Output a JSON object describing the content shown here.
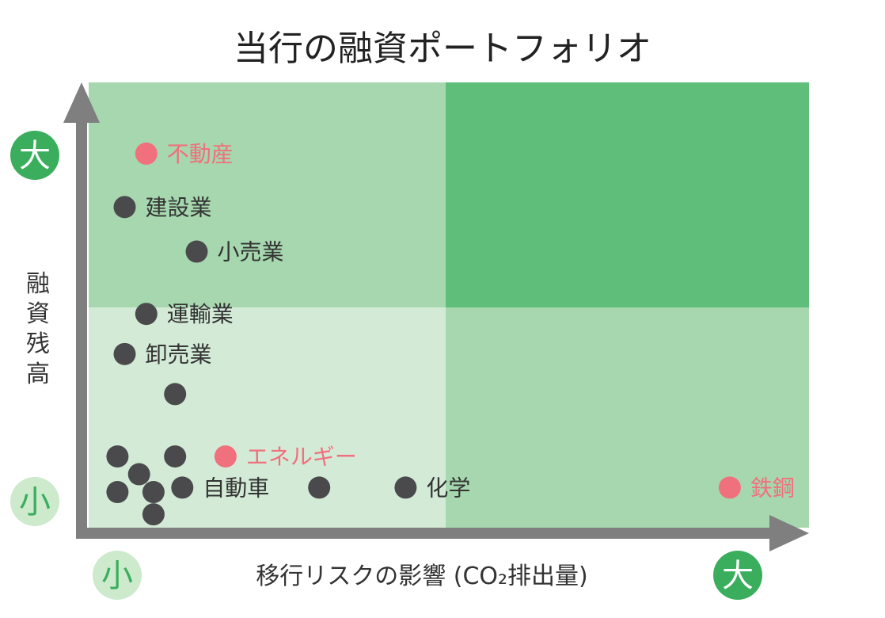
{
  "chart_data": {
    "type": "scatter",
    "title": "当行の融資ポートフォリオ",
    "xlabel": "移行リスクの影響 (CO₂排出量)",
    "ylabel": "融資残高",
    "x_scale": {
      "low_label": "小",
      "high_label": "大"
    },
    "y_scale": {
      "low_label": "小",
      "high_label": "大"
    },
    "xlim": [
      0,
      10
    ],
    "ylim": [
      0,
      10
    ],
    "grid": false,
    "quadrant_colors": {
      "low_low": "#d3ebd6",
      "low_high": "#a6d7ae",
      "high_low": "#a6d7ae",
      "high_high": "#5fbf7a"
    },
    "colors": {
      "highlight": "#f0707d",
      "normal": "#4a4a4c",
      "badge_large_bg": "#3aae5d",
      "badge_large_text": "#ffffff",
      "badge_small_bg": "#cdeacd",
      "badge_small_text": "#3aae5d",
      "axis": "#7f7f80"
    },
    "points": [
      {
        "label": "不動産",
        "x": 0.8,
        "y": 8.4,
        "highlight": true
      },
      {
        "label": "建設業",
        "x": 0.5,
        "y": 7.2,
        "highlight": false
      },
      {
        "label": "小売業",
        "x": 1.5,
        "y": 6.2,
        "highlight": false
      },
      {
        "label": "運輸業",
        "x": 0.8,
        "y": 4.8,
        "highlight": false
      },
      {
        "label": "卸売業",
        "x": 0.5,
        "y": 3.9,
        "highlight": false
      },
      {
        "label": "",
        "x": 1.2,
        "y": 3.0,
        "highlight": false
      },
      {
        "label": "",
        "x": 0.4,
        "y": 1.6,
        "highlight": false
      },
      {
        "label": "",
        "x": 1.2,
        "y": 1.6,
        "highlight": false
      },
      {
        "label": "エネルギー",
        "x": 1.9,
        "y": 1.6,
        "highlight": true
      },
      {
        "label": "",
        "x": 0.7,
        "y": 1.2,
        "highlight": false
      },
      {
        "label": "",
        "x": 0.4,
        "y": 0.8,
        "highlight": false
      },
      {
        "label": "",
        "x": 0.9,
        "y": 0.8,
        "highlight": false
      },
      {
        "label": "自動車",
        "x": 1.3,
        "y": 0.9,
        "highlight": false
      },
      {
        "label": "",
        "x": 0.9,
        "y": 0.3,
        "highlight": false
      },
      {
        "label": "",
        "x": 3.2,
        "y": 0.9,
        "highlight": false
      },
      {
        "label": "化学",
        "x": 4.4,
        "y": 0.9,
        "highlight": false
      },
      {
        "label": "鉄鋼",
        "x": 8.9,
        "y": 0.9,
        "highlight": true
      }
    ]
  }
}
